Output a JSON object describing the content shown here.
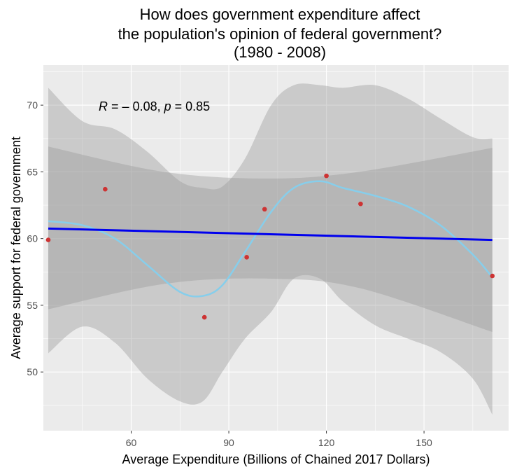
{
  "chart_data": {
    "type": "scatter",
    "title_lines": [
      "How does government expenditure affect",
      "the population's opinion of federal government?",
      "(1980 - 2008)"
    ],
    "xlabel": "Average Expenditure (Billions of Chained 2017 Dollars)",
    "ylabel": "Average support for federal government",
    "xlim": [
      33,
      176
    ],
    "ylim": [
      45.6,
      73.0
    ],
    "x_ticks": [
      60,
      90,
      120,
      150
    ],
    "y_ticks": [
      50,
      55,
      60,
      65,
      70
    ],
    "annotation": {
      "r_symbol": "R",
      "r_text": " = – 0.08, ",
      "p_symbol": "p",
      "p_text": " = 0.85",
      "x": 50,
      "y": 69.9
    },
    "points": {
      "color": "#cd3333",
      "x": [
        34.5,
        52,
        82.5,
        95.5,
        101,
        120,
        130.5,
        171
      ],
      "y": [
        59.9,
        63.7,
        54.1,
        58.6,
        62.2,
        64.7,
        62.6,
        57.2
      ]
    },
    "linear_fit": {
      "color": "#0000ee",
      "x": [
        34.5,
        171
      ],
      "y": [
        60.75,
        59.9
      ],
      "ci_upper_x": [
        34.5,
        70,
        102,
        130,
        171
      ],
      "ci_upper_y": [
        66.9,
        65.0,
        64.5,
        65.0,
        66.8
      ],
      "ci_lower_x": [
        34.5,
        70,
        102,
        130,
        171
      ],
      "ci_lower_y": [
        54.7,
        56.6,
        57.0,
        56.3,
        53.0
      ]
    },
    "loess_fit": {
      "color": "#87ceeb",
      "x": [
        34.5,
        45,
        55,
        65,
        75,
        82,
        88,
        95,
        103,
        110,
        118,
        125,
        135,
        145,
        155,
        165,
        171
      ],
      "y": [
        61.3,
        61.0,
        60.0,
        58.0,
        56.0,
        55.7,
        56.5,
        59.0,
        62.0,
        63.8,
        64.3,
        63.8,
        63.2,
        62.4,
        61.0,
        58.8,
        57.1
      ],
      "ci_upper_y": [
        71.3,
        68.8,
        68.2,
        66.5,
        64.3,
        63.8,
        63.9,
        66.0,
        70.0,
        71.5,
        71.5,
        71.3,
        71.5,
        70.5,
        69.0,
        67.6,
        67.5
      ],
      "ci_lower_y": [
        51.4,
        53.4,
        52.2,
        49.5,
        47.8,
        47.8,
        50.0,
        52.5,
        54.5,
        57.0,
        57.0,
        55.3,
        53.5,
        52.5,
        51.5,
        49.5,
        46.8
      ]
    },
    "colors": {
      "panel_bg": "#ebebeb",
      "grid": "#ffffff",
      "ci_fill": "#999999"
    },
    "grid": true
  }
}
